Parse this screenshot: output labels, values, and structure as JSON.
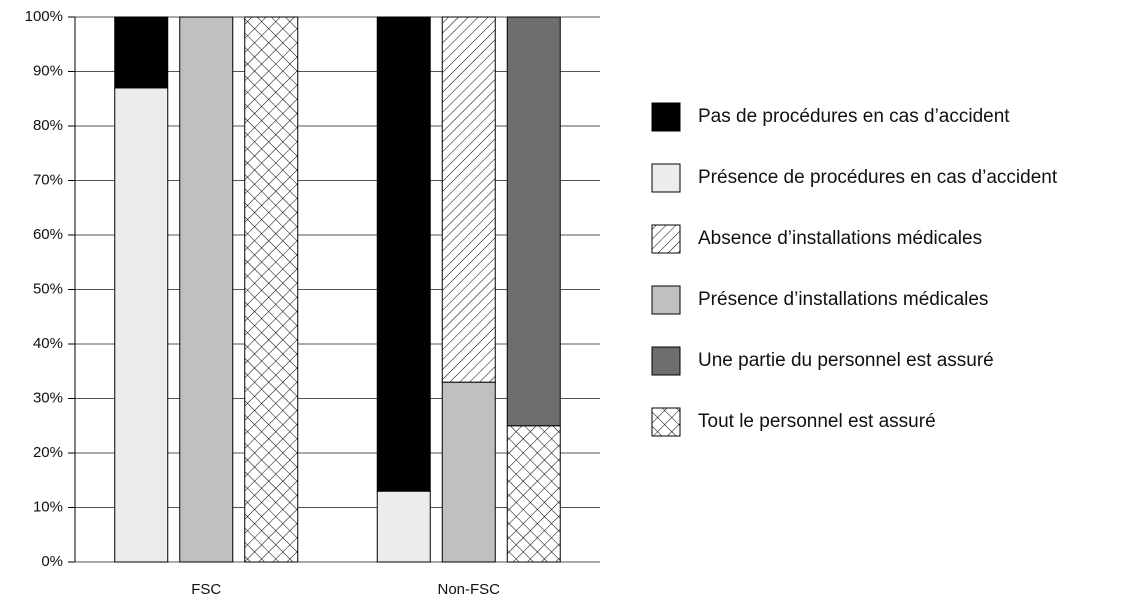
{
  "chart_data": {
    "type": "bar",
    "categories": [
      "FSC",
      "Non-FSC"
    ],
    "series": [
      {
        "name": "Pas de procédures en cas d’accident",
        "color": "#000000",
        "stack": 0,
        "values": [
          13,
          87
        ]
      },
      {
        "name": "Présence de procédures en cas d’accident",
        "color": "#ececec",
        "stack": 0,
        "values": [
          87,
          13
        ]
      },
      {
        "name": "Absence d’installations médicales",
        "color": "#ffffff",
        "pattern": "diagonal",
        "stack": 1,
        "values": [
          0,
          67
        ]
      },
      {
        "name": "Présence d’installations médicales",
        "color": "#c0c0c0",
        "stack": 1,
        "values": [
          100,
          33
        ]
      },
      {
        "name": "Une partie du personnel est assuré",
        "color": "#6e6e6e",
        "stack": 2,
        "values": [
          0,
          75
        ]
      },
      {
        "name": "Tout le personnel est assuré",
        "color": "#ffffff",
        "pattern": "crosshatch",
        "stack": 2,
        "values": [
          100,
          25
        ]
      }
    ],
    "ylim": [
      0,
      100
    ],
    "yticks": [
      {
        "value": 0,
        "label": "0%"
      },
      {
        "value": 10,
        "label": "10%"
      },
      {
        "value": 20,
        "label": "20%"
      },
      {
        "value": 30,
        "label": "30%"
      },
      {
        "value": 40,
        "label": "40%"
      },
      {
        "value": 50,
        "label": "50%"
      },
      {
        "value": 60,
        "label": "60%"
      },
      {
        "value": 70,
        "label": "70%"
      },
      {
        "value": 80,
        "label": "80%"
      },
      {
        "value": 90,
        "label": "90%"
      },
      {
        "value": 100,
        "label": "100%"
      }
    ],
    "grid": true,
    "legend": "right"
  }
}
